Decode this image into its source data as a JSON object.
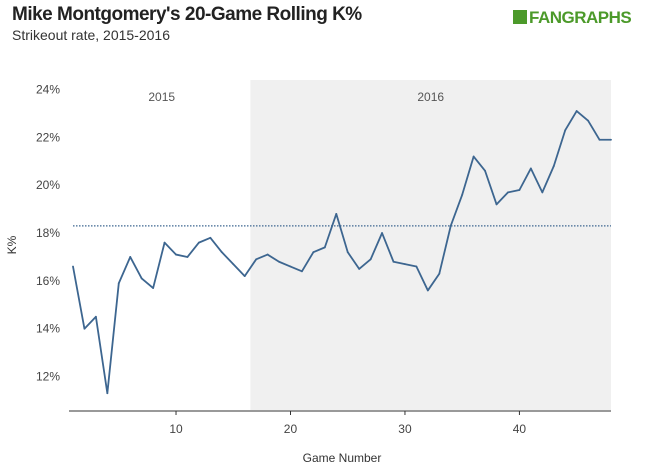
{
  "header": {
    "title": "Mike Montgomery's 20-Game Rolling K%",
    "subtitle": "Strikeout rate, 2015-2016",
    "logo": "FANGRAPHS"
  },
  "chart_data": {
    "type": "line",
    "title": "Mike Montgomery's 20-Game Rolling K%",
    "subtitle": "Strikeout rate, 2015-2016",
    "xlabel": "Game Number",
    "ylabel": "K%",
    "xlim": [
      1,
      48
    ],
    "ylim": [
      10.6,
      24.4
    ],
    "xticks": [
      10,
      20,
      30,
      40
    ],
    "yticks": [
      12,
      14,
      16,
      18,
      20,
      22,
      24
    ],
    "ytick_labels": [
      "12%",
      "14%",
      "16%",
      "18%",
      "20%",
      "22%",
      "24%"
    ],
    "regions": [
      {
        "label": "2015",
        "from": 1,
        "to": 16.5,
        "shaded": false
      },
      {
        "label": "2016",
        "from": 16.5,
        "to": 48,
        "shaded": true
      }
    ],
    "reference_line": {
      "value": 18.3,
      "style": "dotted"
    },
    "series": [
      {
        "name": "20-Game Rolling K%",
        "color": "#3d6690",
        "x": [
          1,
          2,
          3,
          4,
          5,
          6,
          7,
          8,
          9,
          10,
          11,
          12,
          13,
          14,
          15,
          16,
          17,
          18,
          19,
          20,
          21,
          22,
          23,
          24,
          25,
          26,
          27,
          28,
          29,
          30,
          31,
          32,
          33,
          34,
          35,
          36,
          37,
          38,
          39,
          40,
          41,
          42,
          43,
          44,
          45,
          46,
          47,
          48
        ],
        "values": [
          16.6,
          14.0,
          14.5,
          11.3,
          15.9,
          17.0,
          16.1,
          15.7,
          17.6,
          17.1,
          17.0,
          17.6,
          17.8,
          17.2,
          16.7,
          16.2,
          16.9,
          17.1,
          16.8,
          16.6,
          16.4,
          17.2,
          17.4,
          18.8,
          17.2,
          16.5,
          16.9,
          18.0,
          16.8,
          16.7,
          16.6,
          15.6,
          16.3,
          18.3,
          19.6,
          21.2,
          20.6,
          19.2,
          19.7,
          19.8,
          20.7,
          19.7,
          20.8,
          22.3,
          23.1,
          22.7,
          21.9,
          21.9
        ]
      }
    ]
  }
}
